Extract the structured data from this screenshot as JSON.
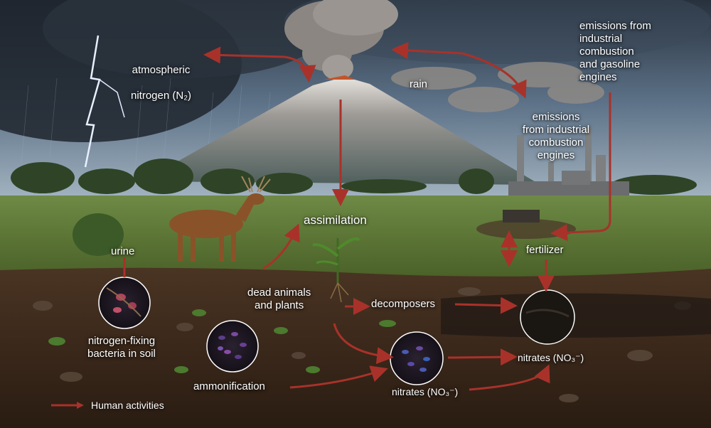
{
  "labels": {
    "atmospheric_line1": "atmospheric",
    "atmospheric_line2": "nitrogen (N₂)",
    "rain": "rain",
    "emissions_gasoline": "emissions from\nindustrial\ncombustion\nand gasoline\nengines",
    "emissions_industrial": "emissions\nfrom industrial\ncombustion\nengines",
    "assimilation": "assimilation",
    "urine": "urine",
    "fertilizer": "fertilizer",
    "dead_animals": "dead animals\nand plants",
    "decomposers": "decomposers",
    "nitrogen_fixing": "nitrogen-fixing\nbacteria in soil",
    "ammonification": "ammonification",
    "nitrates_center": "nitrates (NO₃⁻)",
    "nitrates_right": "nitrates (NO₃⁻)"
  },
  "legend": {
    "label": "Human activities",
    "arrow_color": "#a8322a"
  },
  "colors": {
    "arrow": "#a8322a",
    "sky_top": "#2e3a48",
    "sky_bottom": "#8fa7bf",
    "grass": "#5d7a38",
    "soil": "#3b2a1e"
  },
  "icons": [
    "lightning-icon",
    "volcano-icon",
    "deer-icon",
    "factory-icon",
    "plant-icon",
    "bacteria-circle-icon",
    "soil-circle-icon"
  ]
}
